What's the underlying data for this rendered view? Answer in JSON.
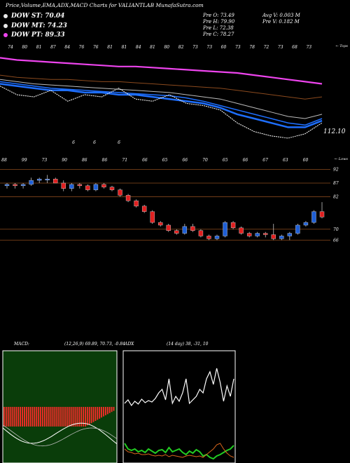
{
  "header": {
    "title": "Price,Volume,EMA,ADX,MACD Charts for VALIANTLAB MunafaSutra.com"
  },
  "legend": [
    {
      "label": "DOW ST: 70.04",
      "color": "#e8e8e8"
    },
    {
      "label": "DOW MT: 74.23",
      "color": "#e8e8e8"
    },
    {
      "label": "DOW PT: 89.33",
      "color": "#ee44ee"
    }
  ],
  "stats": {
    "pre_o": "Pre   O: 73.49",
    "pre_h": "Pre   H: 79.90",
    "pre_l": "Pre   L: 72.38",
    "pre_c": "Pre   C: 78.27",
    "avg_v": "Avg V: 0.003  M",
    "pre_v": "Pre   V: 0.182  M"
  },
  "colors": {
    "up": "#1f5fd6",
    "down": "#e02020",
    "ema_blue": "#1e6fff",
    "ema_pink": "#ee44ee",
    "ema_brown": "#8b4a1e",
    "grid_brown": "#8b4a1e",
    "adx_green": "#22cc22",
    "adx_orange": "#d9661c",
    "macd_green": "#0a3d0a"
  },
  "chart_data": [
    {
      "type": "line",
      "name": "ema-panel",
      "top_ticks": [
        "74",
        "80",
        "81",
        "87",
        "84",
        "76",
        "76",
        "81",
        "81",
        "84",
        "81",
        "80",
        "82",
        "73",
        "73",
        "60",
        "73",
        "78",
        "72",
        "73",
        "68",
        "73"
      ],
      "bottom_ticks": [
        "6",
        "6",
        "6"
      ],
      "right_label": "← Tops",
      "price_label": "112.10",
      "series": [
        {
          "values": [
            116,
            115,
            114.5,
            114,
            113.5,
            113,
            112.5,
            112,
            112,
            111.5,
            111,
            110.5,
            110,
            109.5,
            109,
            108,
            107,
            106,
            105,
            104
          ]
        },
        {
          "values": [
            108,
            107,
            106.5,
            106,
            106,
            105.5,
            105,
            105,
            104.5,
            104,
            103.5,
            103,
            102.5,
            102,
            101,
            100,
            99,
            98,
            97,
            98
          ]
        },
        {
          "values": [
            106,
            105,
            104,
            103.5,
            103,
            102.5,
            102,
            101.5,
            101,
            100.5,
            100,
            99,
            98,
            97,
            95,
            93,
            91,
            89,
            88,
            90
          ]
        },
        {
          "values": [
            105,
            104,
            103,
            102,
            101.5,
            101,
            100.5,
            100,
            99.5,
            99,
            98.5,
            97.5,
            96,
            94,
            92,
            90,
            88,
            86,
            85,
            88
          ]
        },
        {
          "values": [
            104,
            103,
            102,
            101,
            101,
            100,
            100,
            99,
            99,
            98,
            97,
            96,
            95,
            93,
            90,
            88,
            86,
            84,
            84,
            87
          ]
        },
        {
          "values": [
            103,
            99,
            98,
            101,
            96,
            99,
            98,
            102,
            97,
            96,
            99,
            95,
            94,
            92,
            86,
            82,
            80,
            79,
            81,
            86
          ]
        }
      ]
    },
    {
      "type": "candlestick",
      "name": "price-panel",
      "top_ticks": [
        "88",
        "99",
        "73",
        "90",
        "86",
        "86",
        "71",
        "66",
        "65",
        "66",
        "70",
        "65",
        "66",
        "67",
        "63",
        "60"
      ],
      "right_label": "← Lows",
      "y_labels": [
        "92",
        "87",
        "82",
        "70",
        "66"
      ],
      "ohlc": [
        [
          86,
          87,
          85,
          86.5
        ],
        [
          86.5,
          87,
          85,
          86
        ],
        [
          86,
          87,
          85,
          86.5
        ],
        [
          86.5,
          89,
          86,
          88
        ],
        [
          88,
          89,
          87,
          88.5
        ],
        [
          88.5,
          90,
          87,
          88.5
        ],
        [
          88.5,
          89,
          87,
          87
        ],
        [
          87,
          88,
          84,
          85
        ],
        [
          85,
          87,
          84,
          86.5
        ],
        [
          86.5,
          87,
          85,
          86
        ],
        [
          86,
          86.5,
          84,
          84.5
        ],
        [
          84.5,
          87,
          84,
          86.5
        ],
        [
          86.5,
          87,
          85,
          85.5
        ],
        [
          85.5,
          86,
          84,
          84.5
        ],
        [
          84.5,
          85,
          82,
          82.5
        ],
        [
          82.5,
          83,
          80,
          80.5
        ],
        [
          80.5,
          81,
          78,
          78.5
        ],
        [
          78.5,
          79,
          76,
          76.5
        ],
        [
          76.5,
          77,
          72,
          72.5
        ],
        [
          72.5,
          73,
          71,
          71.5
        ],
        [
          71.5,
          72,
          69,
          69.5
        ],
        [
          69.5,
          70,
          68,
          68.5
        ],
        [
          68.5,
          72,
          68,
          71
        ],
        [
          71,
          72,
          69,
          69.5
        ],
        [
          69.5,
          70,
          67,
          67.5
        ],
        [
          67.5,
          68,
          66,
          66.5
        ],
        [
          66.5,
          68,
          66,
          67.5
        ],
        [
          67.5,
          73,
          67,
          72.5
        ],
        [
          72.5,
          73,
          70,
          70.5
        ],
        [
          70.5,
          71,
          68,
          68.5
        ],
        [
          68.5,
          69,
          67,
          67.5
        ],
        [
          67.5,
          69,
          67,
          68.5
        ],
        [
          68.5,
          69,
          67,
          68
        ],
        [
          68,
          72,
          66,
          66.5
        ],
        [
          66.5,
          68,
          66,
          67.5
        ],
        [
          67.5,
          69,
          66,
          68.5
        ],
        [
          68.5,
          72,
          68,
          71.5
        ],
        [
          71.5,
          73,
          71,
          72.5
        ],
        [
          72.5,
          77,
          72,
          76.5
        ],
        [
          76.5,
          80,
          74,
          74.5
        ]
      ]
    },
    {
      "type": "area",
      "name": "macd-panel",
      "label": "MACD:",
      "params": "(12,26,9) 69.89, 70.73, -0.84"
    },
    {
      "type": "line",
      "name": "adx-panel",
      "label": "ADX",
      "params": "(14 day) 38, -31, 10"
    }
  ]
}
